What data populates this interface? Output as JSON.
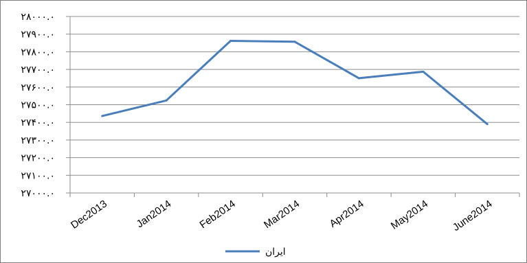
{
  "chart_data": {
    "type": "line",
    "categories": [
      "Dec2013",
      "Jan2014",
      "Feb2014",
      "Mar2014",
      "Apr2014",
      "May2014",
      "June2014"
    ],
    "series": [
      {
        "name": "ایران",
        "color": "#4a7ebb",
        "values": [
          27436,
          27524,
          27862,
          27857,
          27650,
          27687,
          27390
        ]
      }
    ],
    "ylim": [
      27000,
      28000
    ],
    "yticks": [
      27000,
      27100,
      27200,
      27300,
      27400,
      27500,
      27600,
      27700,
      27800,
      27900,
      28000
    ],
    "ytick_labels": [
      "۲۷۰۰۰.۰",
      "۲۷۱۰۰.۰",
      "۲۷۲۰۰.۰",
      "۲۷۳۰۰.۰",
      "۲۷۴۰۰.۰",
      "۲۷۵۰۰.۰",
      "۲۷۶۰۰.۰",
      "۲۷۷۰۰.۰",
      "۲۷۸۰۰.۰",
      "۲۷۹۰۰.۰",
      "۲۸۰۰۰.۰"
    ],
    "grid": true,
    "legend": "bottom"
  }
}
